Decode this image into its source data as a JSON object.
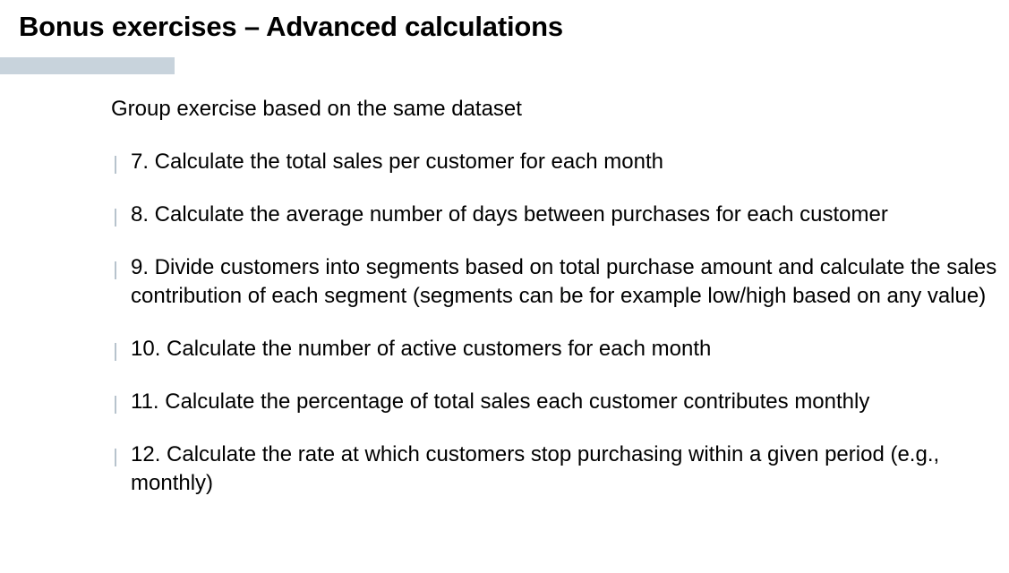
{
  "slide": {
    "title": "Bonus exercises – Advanced calculations",
    "intro": "Group exercise based on the same dataset",
    "accent_color": "#c8d3dc",
    "marker_color": "#b7c3cd",
    "items": [
      {
        "text": "7. Calculate the total sales per customer for each month"
      },
      {
        "text": "8. Calculate the average number of days between purchases for each customer"
      },
      {
        "text": "9. Divide customers into segments based on total purchase amount and calculate the sales contribution of each segment (segments can be for example low/high based on any value)"
      },
      {
        "text": "10. Calculate the number of active customers for each month"
      },
      {
        "text": "11. Calculate the percentage of total sales each customer contributes monthly"
      },
      {
        "text": "12. Calculate the rate at which customers stop purchasing within a given period (e.g., monthly)"
      }
    ]
  }
}
